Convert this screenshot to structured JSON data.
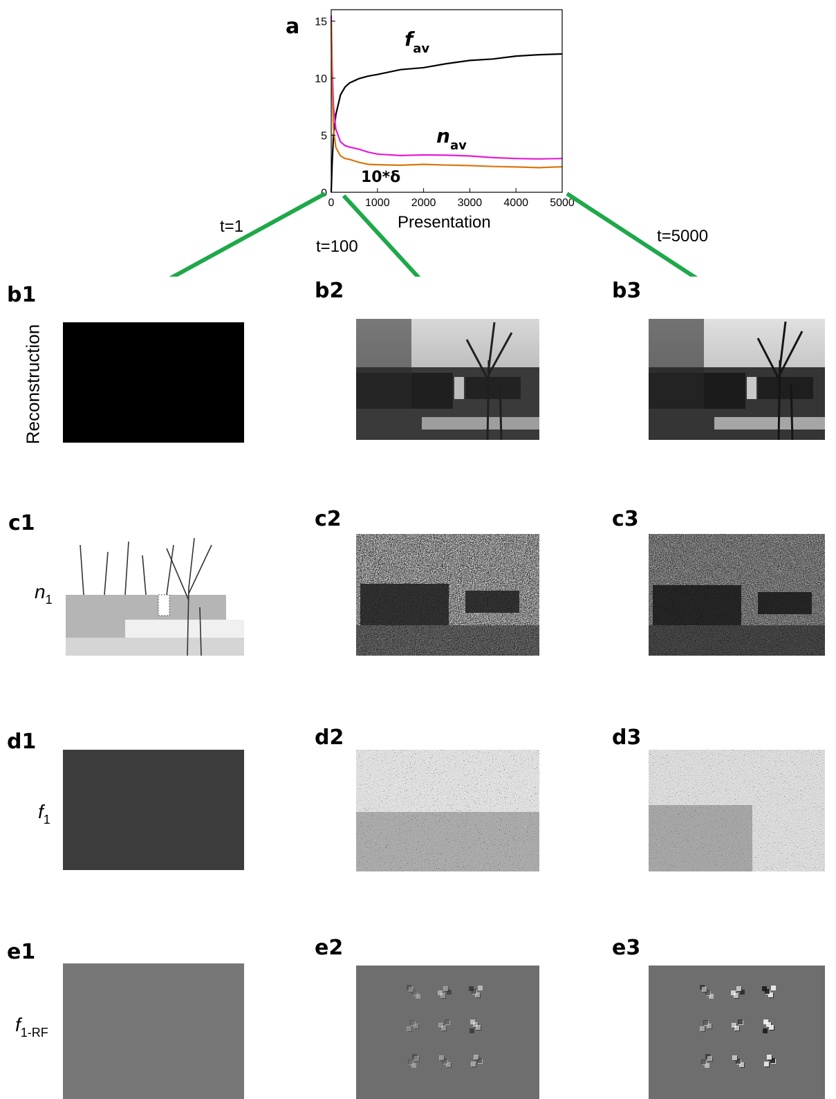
{
  "chart_data": {
    "type": "line",
    "panel_label": "a",
    "xlabel": "Presentation",
    "ylabel": "",
    "xlim": [
      0,
      5000
    ],
    "ylim": [
      0,
      16
    ],
    "xticks": [
      "0",
      "1000",
      "2000",
      "3000",
      "4000",
      "5000"
    ],
    "yticks": [
      "0",
      "5",
      "10",
      "15"
    ],
    "series": [
      {
        "name": "f",
        "sub": "av",
        "color": "#000000",
        "x": [
          0,
          20,
          50,
          100,
          200,
          300,
          400,
          600,
          800,
          1000,
          1500,
          2000,
          2500,
          3000,
          3500,
          4000,
          4500,
          5000
        ],
        "y": [
          0,
          2.5,
          5.0,
          6.8,
          8.6,
          9.3,
          9.6,
          9.9,
          10.1,
          10.3,
          10.8,
          11.0,
          11.3,
          11.5,
          11.6,
          11.9,
          12.1,
          12.2
        ]
      },
      {
        "name": "n",
        "sub": "av",
        "color": "#e81ad6",
        "x": [
          0,
          20,
          50,
          100,
          200,
          300,
          400,
          600,
          800,
          1000,
          1500,
          2000,
          2500,
          3000,
          3500,
          4000,
          4500,
          5000
        ],
        "y": [
          15.5,
          11.0,
          7.5,
          5.6,
          4.5,
          4.1,
          3.9,
          3.7,
          3.5,
          3.4,
          3.3,
          3.3,
          3.2,
          3.1,
          3.0,
          3.0,
          3.0,
          3.0
        ]
      },
      {
        "name": "10*δ",
        "sub": "",
        "color": "#d9770e",
        "x": [
          0,
          20,
          50,
          100,
          200,
          300,
          400,
          600,
          800,
          1000,
          1500,
          2000,
          2500,
          3000,
          3500,
          4000,
          4500,
          5000
        ],
        "y": [
          15.0,
          9.0,
          5.5,
          4.0,
          3.2,
          2.9,
          2.8,
          2.6,
          2.5,
          2.5,
          2.4,
          2.4,
          2.3,
          2.3,
          2.3,
          2.3,
          2.2,
          2.2
        ]
      }
    ]
  },
  "time_labels": {
    "t1": "t=1",
    "t100": "t=100",
    "t5000": "t=5000"
  },
  "panel_labels": {
    "b1": "b1",
    "b2": "b2",
    "b3": "b3",
    "c1": "c1",
    "c2": "c2",
    "c3": "c3",
    "d1": "d1",
    "d2": "d2",
    "d3": "d3",
    "e1": "e1",
    "e2": "e2",
    "e3": "e3"
  },
  "row_labels": {
    "reconstruction": "Reconstruction",
    "n_main": "n",
    "n_sub": "1",
    "f_main": "f",
    "f_sub": "1",
    "frf_main": "f",
    "frf_sub": "1-RF"
  },
  "colors": {
    "arrow": "#1fa84a",
    "reconstruction_t1": "#000000",
    "f1_t1": "#3c3c3c",
    "frf_bg": "#777777"
  }
}
